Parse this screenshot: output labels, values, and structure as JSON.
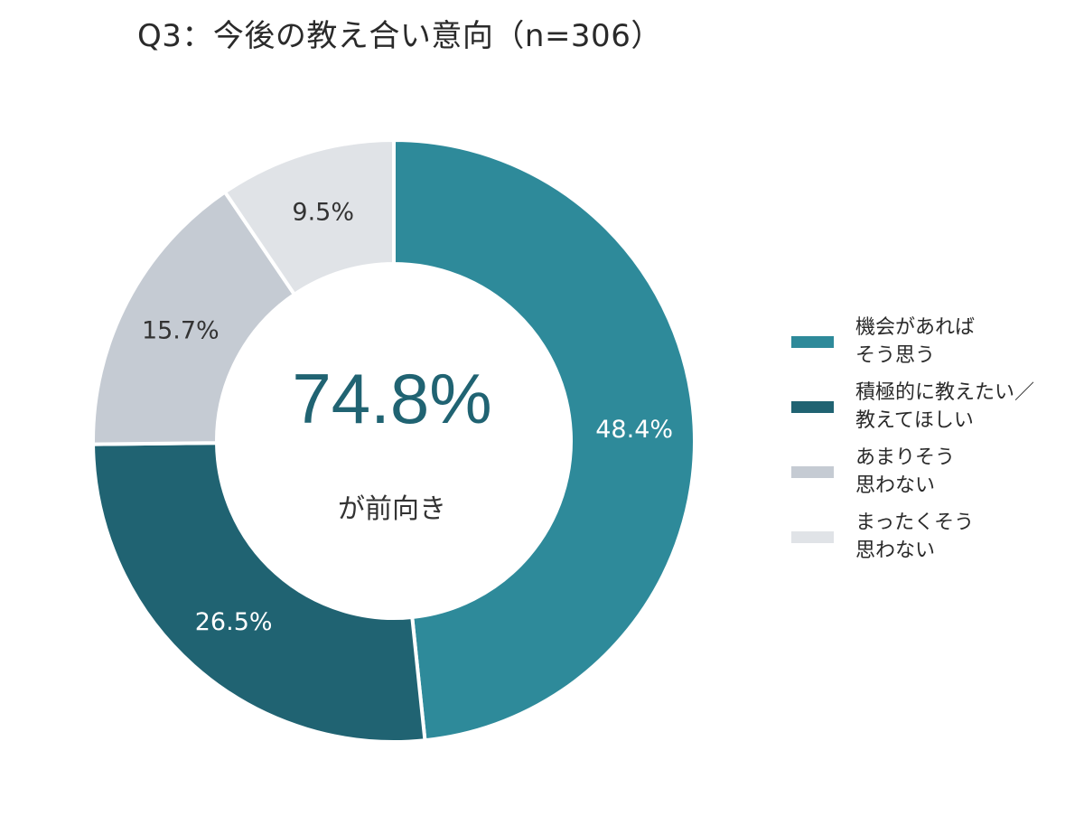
{
  "chart_data": {
    "type": "pie",
    "variant": "donut",
    "title": "Q3：今後の教え合い意向（n=306）",
    "center": {
      "value": "74.8%",
      "label": "が前向き"
    },
    "slices": [
      {
        "name": "機会があれば\nそう思う",
        "value": 48.4,
        "label": "48.4%",
        "color": "#2e8a9a",
        "label_color": "#ffffff"
      },
      {
        "name": "積極的に教えたい／\n教えてほしい",
        "value": 26.5,
        "label": "26.5%",
        "color": "#206372",
        "label_color": "#ffffff"
      },
      {
        "name": "あまりそう\n思わない",
        "value": 15.7,
        "label": "15.7%",
        "color": "#c5cbd3",
        "label_color": "#333333"
      },
      {
        "name": "まったくそう\n思わない",
        "value": 9.5,
        "label": "9.5%",
        "color": "#e0e3e7",
        "label_color": "#333333"
      }
    ],
    "start": "12 o'clock",
    "direction": "clockwise",
    "legend_position": "right"
  },
  "colors": {
    "center_value": "#206372",
    "center_label": "#333333",
    "separator": "#ffffff"
  }
}
